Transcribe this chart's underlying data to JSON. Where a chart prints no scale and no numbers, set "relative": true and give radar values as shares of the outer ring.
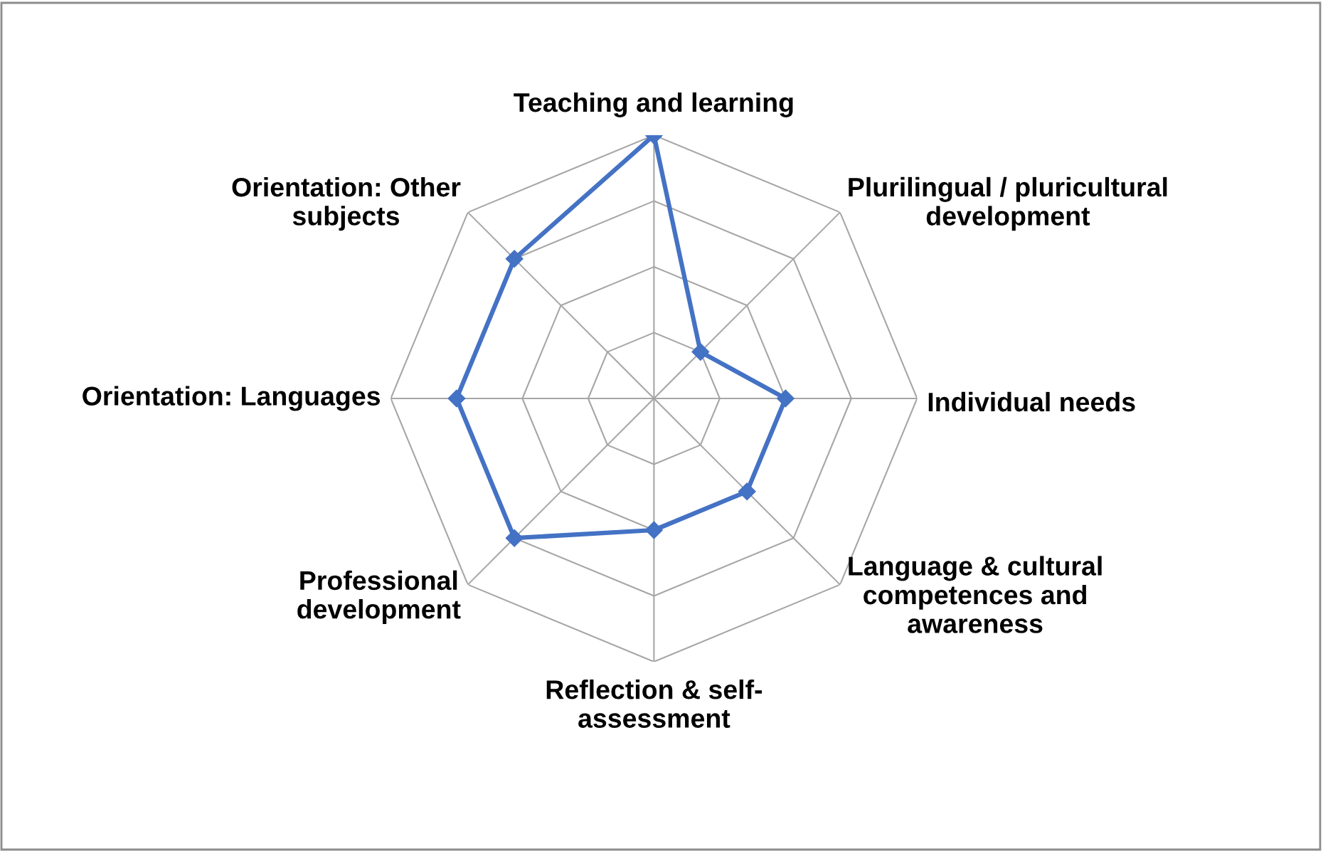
{
  "chart_data": {
    "type": "radar",
    "categories": [
      "Teaching and learning",
      "Plurilingual / pluricultural\ndevelopment",
      "Individual needs",
      "Language & cultural\ncompetences and\nawareness",
      "Reflection & self-\nassessment",
      "Professional\ndevelopment",
      "Orientation: Languages",
      "Orientation: Other\nsubjects"
    ],
    "relative": true,
    "series": [
      {
        "color": "#4472c4",
        "values": [
          1,
          0.25,
          0.5,
          0.5,
          0.5,
          0.75,
          0.75,
          0.75
        ]
      }
    ],
    "grid": true,
    "marker": "diamond",
    "line_style": "solid"
  }
}
